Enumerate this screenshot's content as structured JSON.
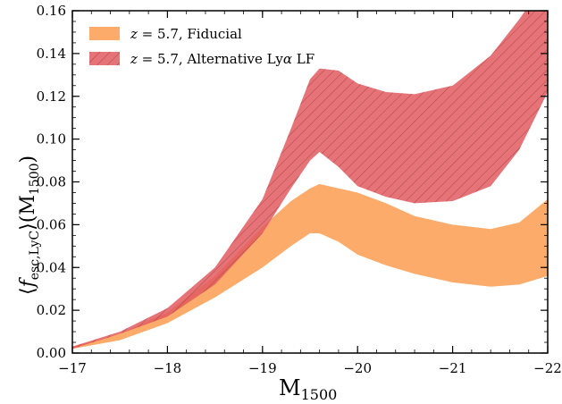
{
  "chart_data": {
    "type": "area",
    "xlabel": "M",
    "xlabel_sub": "1500",
    "ylabel_parts": [
      "⟨",
      "f",
      "esc,LyC",
      "⟩(M",
      "1500",
      ")"
    ],
    "xlim": [
      -17,
      -22
    ],
    "ylim": [
      0,
      0.16
    ],
    "xticks": [
      -17,
      -18,
      -19,
      -20,
      -21,
      -22
    ],
    "xtick_labels": [
      "−17",
      "−18",
      "−19",
      "−20",
      "−21",
      "−22"
    ],
    "yticks": [
      0.0,
      0.02,
      0.04,
      0.06,
      0.08,
      0.1,
      0.12,
      0.14,
      0.16
    ],
    "ytick_labels": [
      "0.00",
      "0.02",
      "0.04",
      "0.06",
      "0.08",
      "0.10",
      "0.12",
      "0.14",
      "0.16"
    ],
    "legend_position": "top-left",
    "series": [
      {
        "label_parts": [
          "z",
          " = 5.7, Fiducial"
        ],
        "color": "#fdab6a",
        "hatch": false,
        "x": [
          -17.0,
          -17.5,
          -18.0,
          -18.5,
          -19.0,
          -19.3,
          -19.5,
          -19.6,
          -19.8,
          -20.0,
          -20.3,
          -20.6,
          -21.0,
          -21.4,
          -21.7,
          -22.0
        ],
        "lower": [
          0.002,
          0.006,
          0.014,
          0.026,
          0.04,
          0.05,
          0.056,
          0.056,
          0.052,
          0.046,
          0.041,
          0.037,
          0.033,
          0.031,
          0.032,
          0.036
        ],
        "upper": [
          0.003,
          0.009,
          0.019,
          0.036,
          0.059,
          0.071,
          0.077,
          0.079,
          0.077,
          0.075,
          0.07,
          0.064,
          0.06,
          0.058,
          0.061,
          0.072
        ]
      },
      {
        "label_parts": [
          "z",
          " = 5.7, Alternative Ly",
          "α",
          " LF"
        ],
        "color": "#e25a5f",
        "hatch": true,
        "x": [
          -17.0,
          -17.5,
          -18.0,
          -18.5,
          -19.0,
          -19.3,
          -19.5,
          -19.6,
          -19.8,
          -20.0,
          -20.3,
          -20.6,
          -21.0,
          -21.4,
          -21.7,
          -22.0
        ],
        "lower": [
          0.002,
          0.009,
          0.017,
          0.032,
          0.056,
          0.077,
          0.09,
          0.094,
          0.087,
          0.078,
          0.073,
          0.07,
          0.071,
          0.078,
          0.095,
          0.122
        ],
        "upper": [
          0.003,
          0.01,
          0.021,
          0.04,
          0.072,
          0.105,
          0.128,
          0.133,
          0.132,
          0.126,
          0.122,
          0.121,
          0.125,
          0.139,
          0.156,
          0.175
        ]
      }
    ]
  }
}
